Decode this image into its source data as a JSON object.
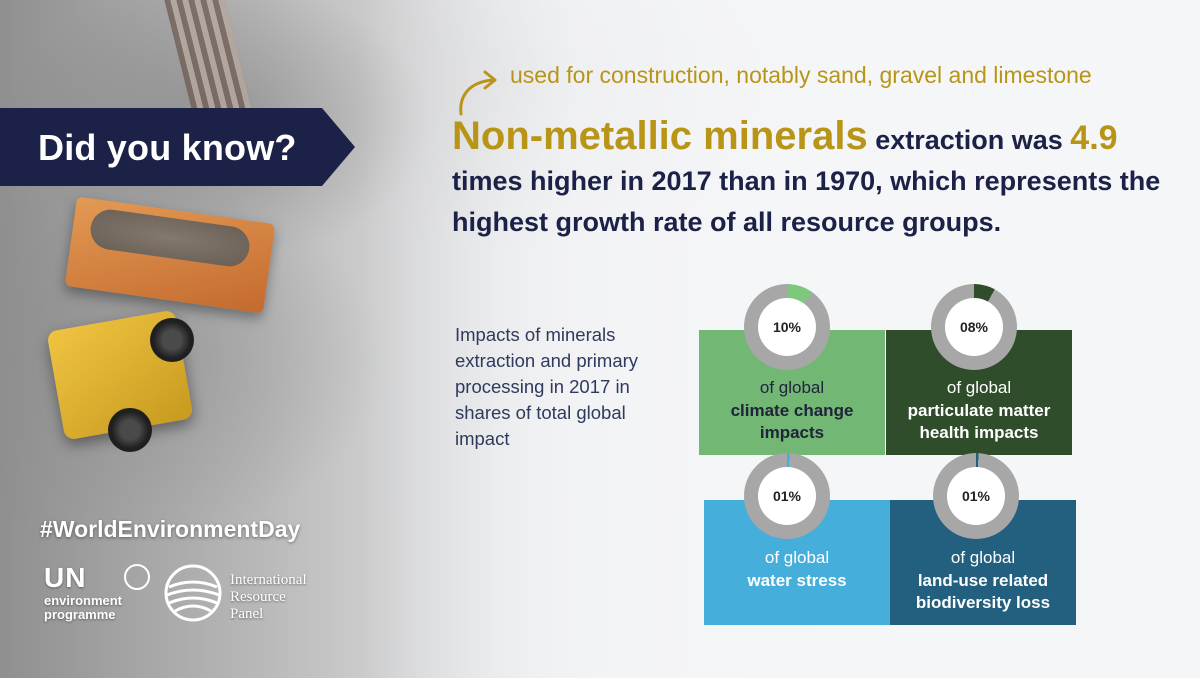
{
  "banner": {
    "title": "Did you know?"
  },
  "note": "used for construction, notably sand, gravel and limestone",
  "headline": {
    "highlight": "Non-metallic minerals",
    "part1": " extraction was ",
    "number": "4.9",
    "part2": " times higher in 2017 than in 1970, which represents the highest growth rate of all resource groups."
  },
  "impacts_caption": "Impacts of minerals extraction and primary processing in 2017 in shares of total global impact",
  "cards": [
    {
      "percent_label": "10%",
      "percent": 10,
      "line1": "of global",
      "line2": "climate change impacts",
      "color": "#73b775",
      "ring_color": "#7cc87d"
    },
    {
      "percent_label": "08%",
      "percent": 8,
      "line1": "of global",
      "line2": "particulate matter health impacts",
      "color": "#2f4d2b",
      "ring_color": "#2f4d2b"
    },
    {
      "percent_label": "01%",
      "percent": 1,
      "line1": "of global",
      "line2": "water stress",
      "color": "#46aedb",
      "ring_color": "#46aedb"
    },
    {
      "percent_label": "01%",
      "percent": 1,
      "line1": "of global",
      "line2": "land-use related biodiversity loss",
      "color": "#23607f",
      "ring_color": "#23607f"
    }
  ],
  "hashtag": "#WorldEnvironmentDay",
  "un_logo": {
    "top": "UN",
    "line1": "environment",
    "line2": "programme"
  },
  "irp_logo": {
    "line1": "International",
    "line2": "Resource",
    "line3": "Panel"
  },
  "colors": {
    "navy": "#1c2147",
    "gold": "#b99517",
    "ring_grey": "#a7a7a7"
  }
}
